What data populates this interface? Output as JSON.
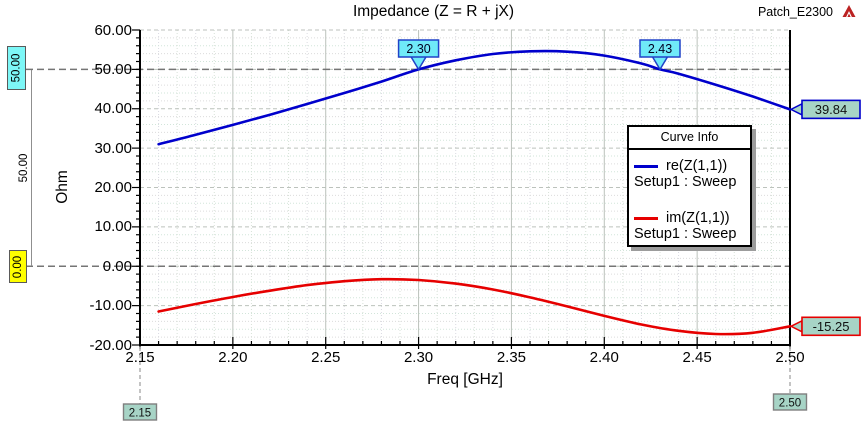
{
  "window": {
    "project_label": "Patch_E2300"
  },
  "chart_data": {
    "type": "line",
    "title": "Impedance (Z = R + jX)",
    "xlabel": "Freq [GHz]",
    "ylabel": "Ohm",
    "xlim": [
      2.15,
      2.5
    ],
    "ylim": [
      -20,
      60
    ],
    "x_major_step": 0.05,
    "x_minor_step": 0.01,
    "y_major_step": 10,
    "y_minor_step": 2,
    "x_tick_labels": [
      "2.15",
      "2.20",
      "2.25",
      "2.30",
      "2.35",
      "2.40",
      "2.45",
      "2.50"
    ],
    "y_tick_labels": [
      "60.00",
      "50.00",
      "40.00",
      "30.00",
      "20.00",
      "10.00",
      "0.00",
      "-10.00",
      "-20.00"
    ],
    "legend": {
      "title": "Curve Info",
      "position": "right-middle",
      "entries": [
        {
          "label": "re(Z(1,1))",
          "sublabel": "Setup1 : Sweep",
          "color": "#0000cc"
        },
        {
          "label": "im(Z(1,1))",
          "sublabel": "Setup1 : Sweep",
          "color": "#e60000"
        }
      ]
    },
    "series": [
      {
        "name": "re(Z(1,1))",
        "color": "#0000cc",
        "x": [
          2.16,
          2.18,
          2.2,
          2.22,
          2.24,
          2.26,
          2.28,
          2.3,
          2.32,
          2.34,
          2.36,
          2.38,
          2.4,
          2.42,
          2.43,
          2.44,
          2.46,
          2.48,
          2.5
        ],
        "y": [
          31.0,
          33.4,
          35.9,
          38.5,
          41.2,
          44.0,
          46.9,
          50.0,
          52.3,
          53.9,
          54.6,
          54.5,
          53.5,
          51.5,
          50.0,
          48.9,
          46.1,
          43.1,
          39.84
        ]
      },
      {
        "name": "im(Z(1,1))",
        "color": "#e60000",
        "x": [
          2.16,
          2.18,
          2.2,
          2.22,
          2.24,
          2.26,
          2.28,
          2.3,
          2.32,
          2.34,
          2.36,
          2.38,
          2.4,
          2.42,
          2.44,
          2.46,
          2.48,
          2.5
        ],
        "y": [
          -11.5,
          -9.6,
          -7.8,
          -6.2,
          -4.8,
          -3.8,
          -3.3,
          -3.5,
          -4.4,
          -5.9,
          -7.9,
          -10.2,
          -12.6,
          -14.8,
          -16.4,
          -17.2,
          -16.9,
          -15.25
        ]
      }
    ],
    "reference_lines": [
      {
        "value": 50,
        "label": "50.00",
        "box_color": "#7df7f7"
      },
      {
        "value": 0,
        "label": "0.00",
        "box_color": "#ffff00"
      }
    ],
    "delta_ruler": {
      "label": "50.00",
      "from": 0,
      "to": 50
    },
    "curve_markers": [
      {
        "label": "2.30",
        "freq": 2.3,
        "value": 50
      },
      {
        "label": "2.43",
        "freq": 2.43,
        "value": 50
      }
    ],
    "edge_value_markers": [
      {
        "label": "39.84",
        "value": 39.84,
        "color": "#0000cc"
      },
      {
        "label": "-15.25",
        "value": -15.25,
        "color": "#e60000"
      }
    ],
    "axis_range_markers": [
      {
        "label": "2.15",
        "freq": 2.15
      },
      {
        "label": "2.50",
        "freq": 2.5
      }
    ],
    "marker_fill": "#a7d4c6",
    "callout_fill": "#6feaf8",
    "callout_border": "#2143c8"
  }
}
